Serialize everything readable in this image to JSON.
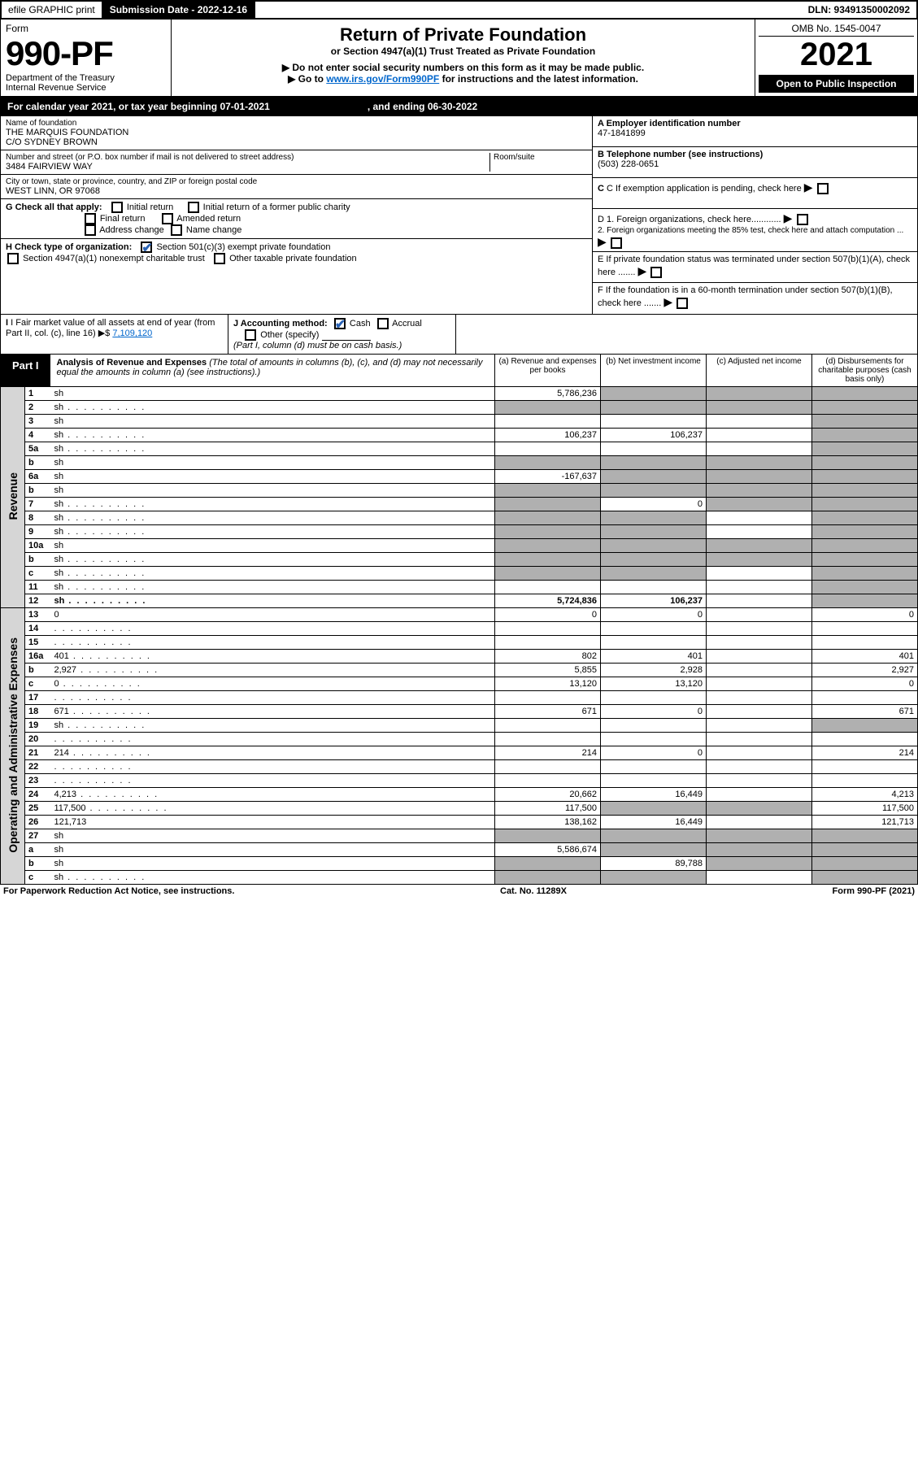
{
  "topbar": {
    "efile": "efile GRAPHIC print",
    "sub_label": "Submission Date - 2022-12-16",
    "dln": "DLN: 93491350002092"
  },
  "header": {
    "form_word": "Form",
    "form_no": "990-PF",
    "dept": "Department of the Treasury",
    "irs": "Internal Revenue Service",
    "title": "Return of Private Foundation",
    "subtitle": "or Section 4947(a)(1) Trust Treated as Private Foundation",
    "note1": "▶ Do not enter social security numbers on this form as it may be made public.",
    "note2_pre": "▶ Go to ",
    "note2_link": "www.irs.gov/Form990PF",
    "note2_post": " for instructions and the latest information.",
    "omb": "OMB No. 1545-0047",
    "year": "2021",
    "openpub": "Open to Public Inspection"
  },
  "calyear": {
    "text": "For calendar year 2021, or tax year beginning 07-01-2021",
    "end": ", and ending 06-30-2022"
  },
  "id": {
    "name_label": "Name of foundation",
    "name1": "THE MARQUIS FOUNDATION",
    "name2": "C/O SYDNEY BROWN",
    "addr_label": "Number and street (or P.O. box number if mail is not delivered to street address)",
    "addr": "3484 FAIRVIEW WAY",
    "room_label": "Room/suite",
    "city_label": "City or town, state or province, country, and ZIP or foreign postal code",
    "city": "WEST LINN, OR  97068",
    "a_label": "A Employer identification number",
    "a_val": "47-1841899",
    "b_label": "B Telephone number (see instructions)",
    "b_val": "(503) 228-0651",
    "c_label": "C If exemption application is pending, check here",
    "d1": "D 1. Foreign organizations, check here............",
    "d2": "2. Foreign organizations meeting the 85% test, check here and attach computation ...",
    "e": "E  If private foundation status was terminated under section 507(b)(1)(A), check here .......",
    "f": "F  If the foundation is in a 60-month termination under section 507(b)(1)(B), check here .......",
    "g_label": "G Check all that apply:",
    "g_opts": [
      "Initial return",
      "Final return",
      "Address change",
      "Initial return of a former public charity",
      "Amended return",
      "Name change"
    ],
    "h_label": "H Check type of organization:",
    "h_opt1": "Section 501(c)(3) exempt private foundation",
    "h_opt2": "Section 4947(a)(1) nonexempt charitable trust",
    "h_opt3": "Other taxable private foundation",
    "i_label": "I Fair market value of all assets at end of year (from Part II, col. (c), line 16)",
    "i_val": "7,109,120",
    "j_label": "J Accounting method:",
    "j_cash": "Cash",
    "j_accrual": "Accrual",
    "j_other": "Other (specify)",
    "j_note": "(Part I, column (d) must be on cash basis.)"
  },
  "part1": {
    "tab": "Part I",
    "title": "Analysis of Revenue and Expenses",
    "title_note": "(The total of amounts in columns (b), (c), and (d) may not necessarily equal the amounts in column (a) (see instructions).)",
    "cols": [
      "(a)   Revenue and expenses per books",
      "(b)   Net investment income",
      "(c)   Adjusted net income",
      "(d)   Disbursements for charitable purposes (cash basis only)"
    ]
  },
  "sides": {
    "rev": "Revenue",
    "exp": "Operating and Administrative Expenses"
  },
  "rows": [
    {
      "n": "1",
      "d": "sh",
      "a": "5,786,236",
      "b": "sh",
      "c": "sh"
    },
    {
      "n": "2",
      "d": "sh",
      "dots": 1,
      "a": "sh",
      "b": "sh",
      "c": "sh"
    },
    {
      "n": "3",
      "d": "sh",
      "a": "",
      "b": "",
      "c": ""
    },
    {
      "n": "4",
      "d": "sh",
      "dots": 1,
      "a": "106,237",
      "b": "106,237",
      "c": ""
    },
    {
      "n": "5a",
      "d": "sh",
      "dots": 1,
      "a": "",
      "b": "",
      "c": ""
    },
    {
      "n": "b",
      "d": "sh",
      "a": "sh",
      "b": "sh",
      "c": "sh"
    },
    {
      "n": "6a",
      "d": "sh",
      "a": "-167,637",
      "b": "sh",
      "c": "sh"
    },
    {
      "n": "b",
      "d": "sh",
      "a": "sh",
      "b": "sh",
      "c": "sh"
    },
    {
      "n": "7",
      "d": "sh",
      "dots": 1,
      "a": "sh",
      "b": "0",
      "c": "sh"
    },
    {
      "n": "8",
      "d": "sh",
      "dots": 1,
      "a": "sh",
      "b": "sh",
      "c": ""
    },
    {
      "n": "9",
      "d": "sh",
      "dots": 1,
      "a": "sh",
      "b": "sh",
      "c": ""
    },
    {
      "n": "10a",
      "d": "sh",
      "a": "sh",
      "b": "sh",
      "c": "sh"
    },
    {
      "n": "b",
      "d": "sh",
      "dots": 1,
      "a": "sh",
      "b": "sh",
      "c": "sh"
    },
    {
      "n": "c",
      "d": "sh",
      "dots": 1,
      "a": "sh",
      "b": "sh",
      "c": ""
    },
    {
      "n": "11",
      "d": "sh",
      "dots": 1,
      "a": "",
      "b": "",
      "c": ""
    },
    {
      "n": "12",
      "d": "sh",
      "dots": 1,
      "a": "5,724,836",
      "b": "106,237",
      "c": "",
      "bold": 1
    }
  ],
  "exp_rows": [
    {
      "n": "13",
      "d": "0",
      "a": "0",
      "b": "0",
      "c": ""
    },
    {
      "n": "14",
      "d": "",
      "dots": 1,
      "a": "",
      "b": "",
      "c": ""
    },
    {
      "n": "15",
      "d": "",
      "dots": 1,
      "a": "",
      "b": "",
      "c": ""
    },
    {
      "n": "16a",
      "d": "401",
      "dots": 1,
      "a": "802",
      "b": "401",
      "c": ""
    },
    {
      "n": "b",
      "d": "2,927",
      "dots": 1,
      "a": "5,855",
      "b": "2,928",
      "c": ""
    },
    {
      "n": "c",
      "d": "0",
      "dots": 1,
      "a": "13,120",
      "b": "13,120",
      "c": ""
    },
    {
      "n": "17",
      "d": "",
      "dots": 1,
      "a": "",
      "b": "",
      "c": ""
    },
    {
      "n": "18",
      "d": "671",
      "dots": 1,
      "a": "671",
      "b": "0",
      "c": ""
    },
    {
      "n": "19",
      "d": "sh",
      "dots": 1,
      "a": "",
      "b": "",
      "c": ""
    },
    {
      "n": "20",
      "d": "",
      "dots": 1,
      "a": "",
      "b": "",
      "c": ""
    },
    {
      "n": "21",
      "d": "214",
      "dots": 1,
      "a": "214",
      "b": "0",
      "c": ""
    },
    {
      "n": "22",
      "d": "",
      "dots": 1,
      "a": "",
      "b": "",
      "c": ""
    },
    {
      "n": "23",
      "d": "",
      "dots": 1,
      "a": "",
      "b": "",
      "c": ""
    },
    {
      "n": "24",
      "d": "4,213",
      "dots": 1,
      "a": "20,662",
      "b": "16,449",
      "c": ""
    },
    {
      "n": "25",
      "d": "117,500",
      "dots": 1,
      "a": "117,500",
      "b": "sh",
      "c": "sh"
    },
    {
      "n": "26",
      "d": "121,713",
      "a": "138,162",
      "b": "16,449",
      "c": ""
    },
    {
      "n": "27",
      "d": "sh",
      "a": "sh",
      "b": "sh",
      "c": "sh"
    },
    {
      "n": "a",
      "d": "sh",
      "a": "5,586,674",
      "b": "sh",
      "c": "sh"
    },
    {
      "n": "b",
      "d": "sh",
      "a": "sh",
      "b": "89,788",
      "c": "sh"
    },
    {
      "n": "c",
      "d": "sh",
      "dots": 1,
      "a": "sh",
      "b": "sh",
      "c": ""
    }
  ],
  "footer": {
    "left": "For Paperwork Reduction Act Notice, see instructions.",
    "mid": "Cat. No. 11289X",
    "right": "Form 990-PF (2021)"
  }
}
